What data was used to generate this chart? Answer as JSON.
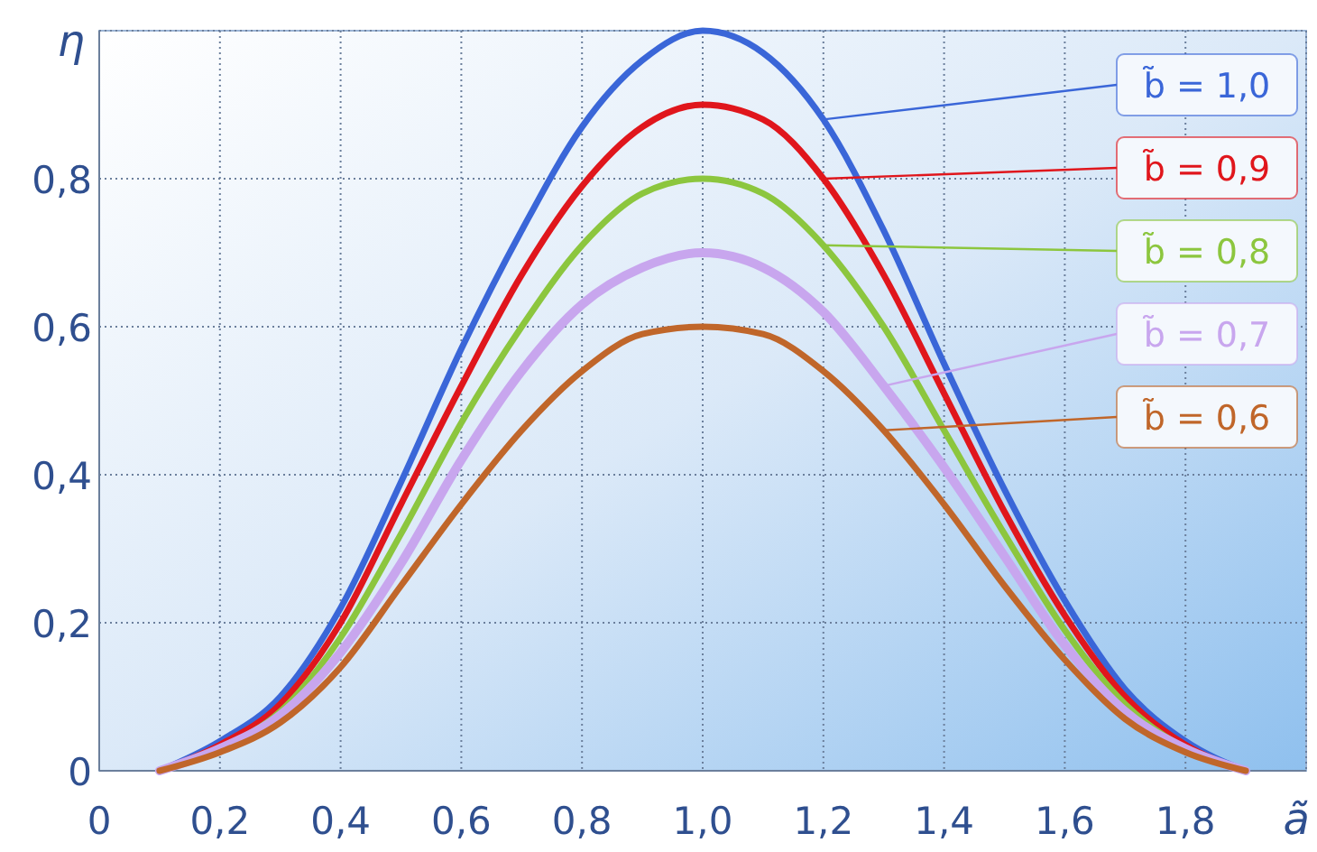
{
  "chart_data": {
    "type": "line",
    "xlabel": "ã",
    "ylabel": "η",
    "x": [
      0.1,
      0.2,
      0.3,
      0.4,
      0.5,
      0.6,
      0.7,
      0.8,
      0.9,
      1.0,
      1.1,
      1.2,
      1.3,
      1.4,
      1.5,
      1.6,
      1.7,
      1.8,
      1.9
    ],
    "series": [
      {
        "name": "b̃ = 1,0",
        "color": "#3a66d8",
        "values": [
          0,
          0.04,
          0.1,
          0.22,
          0.39,
          0.57,
          0.73,
          0.87,
          0.96,
          1.0,
          0.97,
          0.88,
          0.73,
          0.55,
          0.38,
          0.23,
          0.11,
          0.04,
          0
        ]
      },
      {
        "name": "b̃ = 0,9",
        "color": "#e0161c",
        "values": [
          0,
          0.035,
          0.09,
          0.2,
          0.36,
          0.52,
          0.67,
          0.79,
          0.87,
          0.9,
          0.88,
          0.8,
          0.67,
          0.51,
          0.35,
          0.21,
          0.1,
          0.035,
          0
        ]
      },
      {
        "name": "b̃ = 0,8",
        "color": "#8cc63e",
        "values": [
          0,
          0.03,
          0.08,
          0.18,
          0.32,
          0.47,
          0.6,
          0.71,
          0.78,
          0.8,
          0.78,
          0.71,
          0.6,
          0.46,
          0.32,
          0.19,
          0.09,
          0.03,
          0
        ]
      },
      {
        "name": "b̃ = 0,7",
        "color": "#c8a6ee",
        "values": [
          0,
          0.03,
          0.075,
          0.16,
          0.28,
          0.42,
          0.54,
          0.63,
          0.68,
          0.7,
          0.68,
          0.62,
          0.52,
          0.41,
          0.29,
          0.17,
          0.08,
          0.03,
          0
        ]
      },
      {
        "name": "b̃ = 0,6",
        "color": "#c0662a",
        "values": [
          0,
          0.025,
          0.065,
          0.14,
          0.25,
          0.36,
          0.46,
          0.54,
          0.59,
          0.6,
          0.59,
          0.54,
          0.46,
          0.36,
          0.25,
          0.15,
          0.07,
          0.025,
          0
        ]
      }
    ],
    "xlim": [
      0,
      2
    ],
    "ylim": [
      0,
      1
    ],
    "xticks": [
      {
        "value": 0,
        "label": "0"
      },
      {
        "value": 0.2,
        "label": "0,2"
      },
      {
        "value": 0.4,
        "label": "0,4"
      },
      {
        "value": 0.6,
        "label": "0,6"
      },
      {
        "value": 0.8,
        "label": "0,8"
      },
      {
        "value": 1,
        "label": "1,0"
      },
      {
        "value": 1.2,
        "label": "1,2"
      },
      {
        "value": 1.4,
        "label": "1,4"
      },
      {
        "value": 1.6,
        "label": "1,6"
      },
      {
        "value": 1.8,
        "label": "1,8"
      },
      {
        "value": 2,
        "label": null
      }
    ],
    "yticks": [
      {
        "value": 0,
        "label": "0"
      },
      {
        "value": 0.2,
        "label": "0,2"
      },
      {
        "value": 0.4,
        "label": "0,4"
      },
      {
        "value": 0.6,
        "label": "0,6"
      },
      {
        "value": 0.8,
        "label": "0,8"
      },
      {
        "value": 1,
        "label": null
      }
    ],
    "grid": true,
    "legend": "top right",
    "marker": "none",
    "line_style": "solid"
  }
}
